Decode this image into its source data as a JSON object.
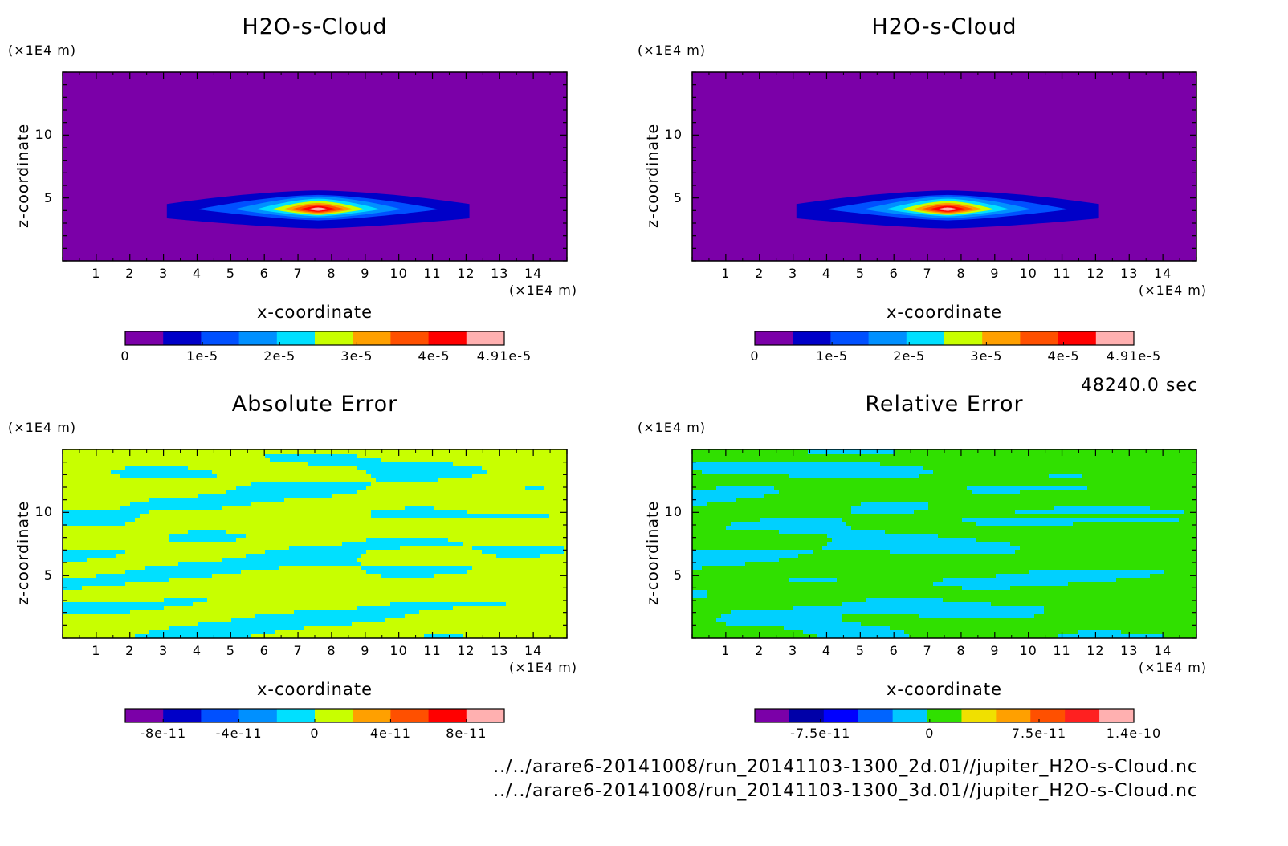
{
  "time_label": "48240.0 sec",
  "file_paths": [
    "../../arare6-20141008/run_20141103-1300_2d.01//jupiter_H2O-s-Cloud.nc",
    "../../arare6-20141008/run_20141103-1300_3d.01//jupiter_H2O-s-Cloud.nc"
  ],
  "chart_data": [
    {
      "type": "heatmap",
      "title": "H2O-s-Cloud",
      "xlabel": "x-coordinate",
      "ylabel": "z-coordinate",
      "x_unit": "(×1E4 m)",
      "y_unit": "(×1E4 m)",
      "xlim": [
        0,
        15
      ],
      "ylim": [
        0,
        15
      ],
      "x_ticks": [
        1,
        2,
        3,
        4,
        5,
        6,
        7,
        8,
        9,
        10,
        11,
        12,
        13,
        14
      ],
      "y_ticks": [
        5,
        10
      ],
      "field": "cloud",
      "colorbar": {
        "min": 0,
        "max": 4.91e-05,
        "colors": [
          "#7b00a8",
          "#0000c8",
          "#0050ff",
          "#0090ff",
          "#00e0ff",
          "#c8ff00",
          "#ffa000",
          "#ff5000",
          "#ff0000",
          "#ffb0b0"
        ],
        "tick_values": [
          0,
          1e-05,
          2e-05,
          3e-05,
          4e-05,
          4.91e-05
        ],
        "tick_labels": [
          "0",
          "1e-5",
          "2e-5",
          "3e-5",
          "4e-5",
          "4.91e-5"
        ]
      }
    },
    {
      "type": "heatmap",
      "title": "H2O-s-Cloud",
      "xlabel": "x-coordinate",
      "ylabel": "z-coordinate",
      "x_unit": "(×1E4 m)",
      "y_unit": "(×1E4 m)",
      "xlim": [
        0,
        15
      ],
      "ylim": [
        0,
        15
      ],
      "x_ticks": [
        1,
        2,
        3,
        4,
        5,
        6,
        7,
        8,
        9,
        10,
        11,
        12,
        13,
        14
      ],
      "y_ticks": [
        5,
        10
      ],
      "field": "cloud",
      "colorbar": {
        "min": 0,
        "max": 4.91e-05,
        "colors": [
          "#7b00a8",
          "#0000c8",
          "#0050ff",
          "#0090ff",
          "#00e0ff",
          "#c8ff00",
          "#ffa000",
          "#ff5000",
          "#ff0000",
          "#ffb0b0"
        ],
        "tick_values": [
          0,
          1e-05,
          2e-05,
          3e-05,
          4e-05,
          4.91e-05
        ],
        "tick_labels": [
          "0",
          "1e-5",
          "2e-5",
          "3e-5",
          "4e-5",
          "4.91e-5"
        ]
      }
    },
    {
      "type": "heatmap",
      "title": "Absolute Error",
      "xlabel": "x-coordinate",
      "ylabel": "z-coordinate",
      "x_unit": "(×1E4 m)",
      "y_unit": "(×1E4 m)",
      "xlim": [
        0,
        15
      ],
      "ylim": [
        0,
        15
      ],
      "x_ticks": [
        1,
        2,
        3,
        4,
        5,
        6,
        7,
        8,
        9,
        10,
        11,
        12,
        13,
        14
      ],
      "y_ticks": [
        5,
        10
      ],
      "field": "noise",
      "noise_colors": [
        "#00e0ff",
        "#c8ff00"
      ],
      "colorbar": {
        "min": -1e-10,
        "max": 1e-10,
        "colors": [
          "#7b00a8",
          "#0000c8",
          "#0050ff",
          "#0090ff",
          "#00e0ff",
          "#c8ff00",
          "#ffa000",
          "#ff5000",
          "#ff0000",
          "#ffb0b0"
        ],
        "tick_values": [
          -8e-11,
          -4e-11,
          0,
          4e-11,
          8e-11
        ],
        "tick_labels": [
          "-8e-11",
          "-4e-11",
          "0",
          "4e-11",
          "8e-11"
        ]
      }
    },
    {
      "type": "heatmap",
      "title": "Relative Error",
      "xlabel": "x-coordinate",
      "ylabel": "z-coordinate",
      "x_unit": "(×1E4 m)",
      "y_unit": "(×1E4 m)",
      "xlim": [
        0,
        15
      ],
      "ylim": [
        0,
        15
      ],
      "x_ticks": [
        1,
        2,
        3,
        4,
        5,
        6,
        7,
        8,
        9,
        10,
        11,
        12,
        13,
        14
      ],
      "y_ticks": [
        5,
        10
      ],
      "field": "noise",
      "noise_colors": [
        "#00d0ff",
        "#30e000"
      ],
      "colorbar": {
        "min": -1.2e-10,
        "max": 1.4e-10,
        "colors": [
          "#7b00a8",
          "#0000a8",
          "#0000ff",
          "#0064ff",
          "#00c8ff",
          "#30e000",
          "#f0e000",
          "#ffa000",
          "#ff5000",
          "#ff2020",
          "#ffb0b0"
        ],
        "tick_values": [
          -7.5e-11,
          0,
          7.5e-11,
          1.4e-10
        ],
        "tick_labels": [
          "-7.5e-11",
          "0",
          "7.5e-11",
          "1.4e-10"
        ]
      }
    }
  ]
}
